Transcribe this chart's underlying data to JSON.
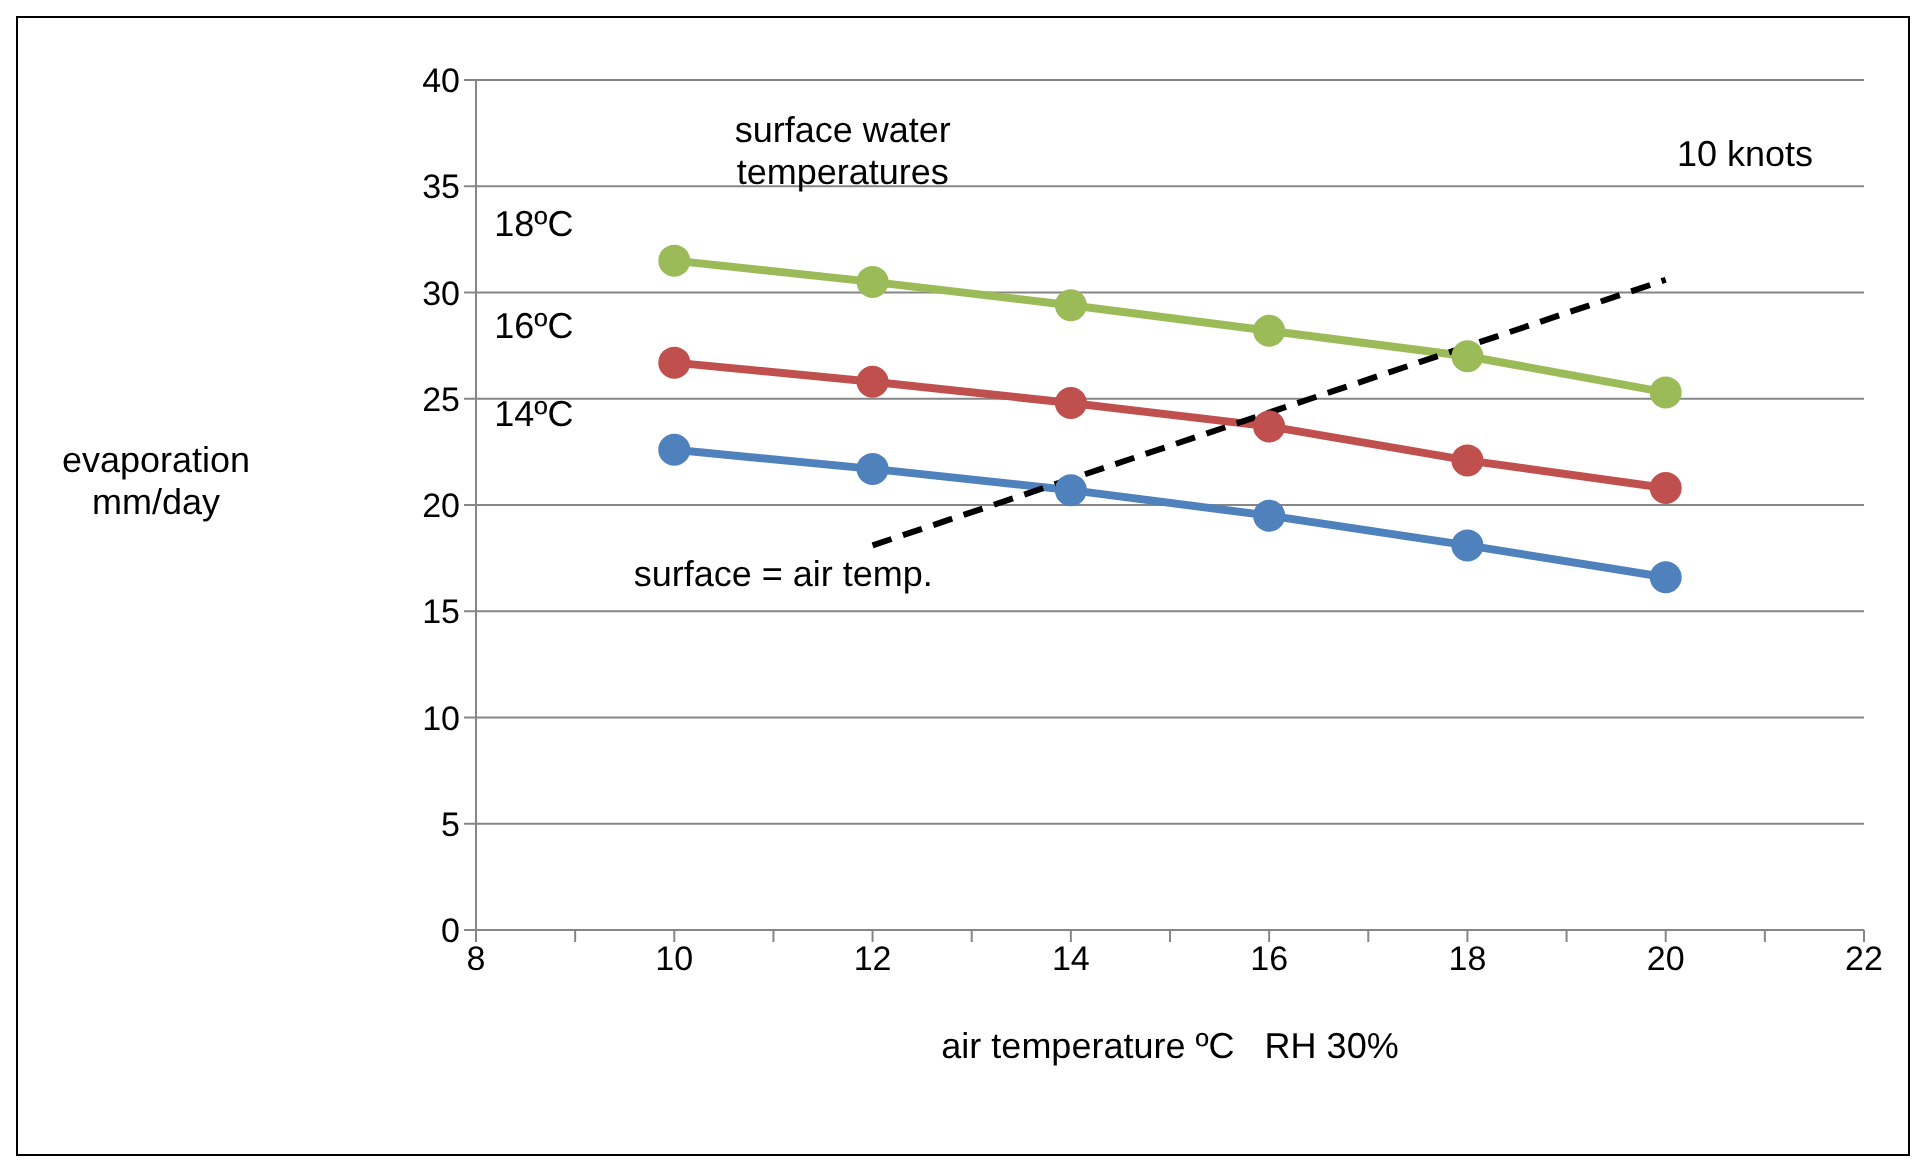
{
  "chart_data": {
    "type": "line",
    "xlabel": "air temperature ºC   RH 30%",
    "ylabel": "evaporation mm/day",
    "annotations": [
      "surface water temperatures",
      "10 knots",
      "surface = air temp."
    ],
    "x": [
      10,
      12,
      14,
      16,
      18,
      20
    ],
    "series": [
      {
        "name": "18ºC",
        "color": "#9bbb59",
        "values": [
          31.5,
          30.5,
          29.4,
          28.2,
          27.0,
          25.3
        ]
      },
      {
        "name": "16ºC",
        "color": "#c0504d",
        "values": [
          26.7,
          25.8,
          24.8,
          23.7,
          22.1,
          20.8
        ]
      },
      {
        "name": "14ºC",
        "color": "#4f81bd",
        "values": [
          22.6,
          21.7,
          20.7,
          19.5,
          18.1,
          16.6
        ]
      },
      {
        "color": "#000000",
        "x": [
          12,
          20
        ],
        "values": [
          18.1,
          30.6
        ],
        "line_style": "dashed",
        "marker": "none"
      }
    ],
    "marker": "circle",
    "line_style": "solid",
    "grid": "y",
    "legend": false,
    "xlim": [
      8,
      22
    ],
    "xticks": [
      8,
      {
        "value": 9,
        "label": null
      },
      10,
      {
        "value": 11,
        "label": null
      },
      12,
      {
        "value": 13,
        "label": null
      },
      14,
      {
        "value": 15,
        "label": null
      },
      16,
      {
        "value": 17,
        "label": null
      },
      18,
      {
        "value": 19,
        "label": null
      },
      20,
      {
        "value": 21,
        "label": null
      },
      22
    ],
    "ylim": [
      0,
      40
    ],
    "yticks": [
      0,
      5,
      10,
      15,
      20,
      25,
      30,
      35,
      40
    ]
  }
}
